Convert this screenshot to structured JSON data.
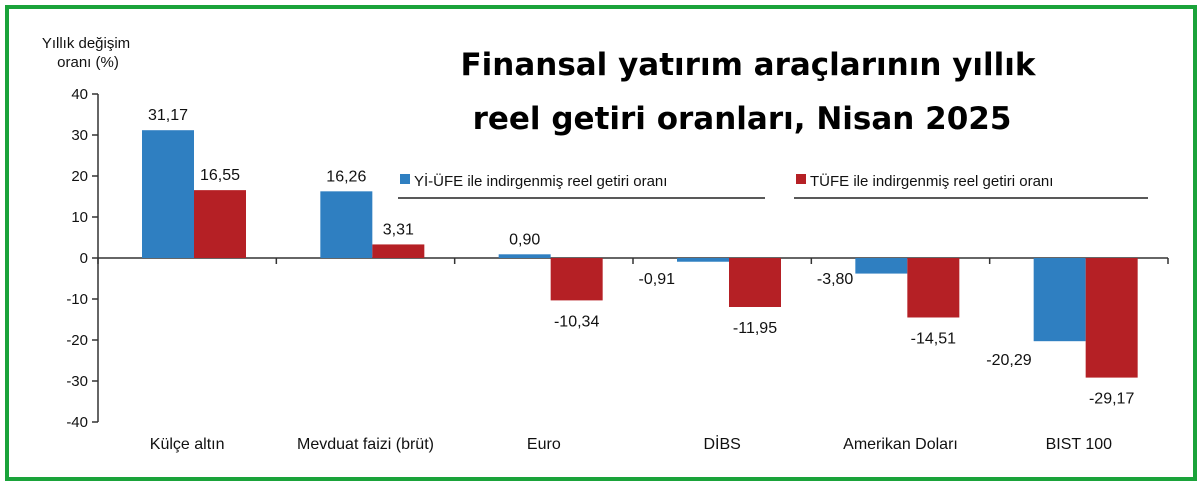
{
  "chart_data": {
    "type": "bar",
    "title_lines": [
      "Finansal yatırım araçlarının yıllık",
      "reel getiri oranları, Nisan 2025"
    ],
    "ylabel_lines": [
      "Yıllık değişim",
      "oranı (%)"
    ],
    "categories": [
      "Külçe altın",
      "Mevduat faizi (brüt)",
      "Euro",
      "DİBS",
      "Amerikan Doları",
      "BIST 100"
    ],
    "series": [
      {
        "name": "Yİ-ÜFE ile indirgenmiş reel getiri oranı",
        "color": "#2f7fc1",
        "values": [
          31.17,
          16.26,
          0.9,
          -0.91,
          -3.8,
          -20.29
        ],
        "labels": [
          "31,17",
          "16,26",
          "0,90",
          "-0,91",
          "-3,80",
          "-20,29"
        ]
      },
      {
        "name": "TÜFE ile indirgenmiş reel getiri oranı",
        "color": "#b52025",
        "values": [
          16.55,
          3.31,
          -10.34,
          -11.95,
          -14.51,
          -29.17
        ],
        "labels": [
          "16,55",
          "3,31",
          "-10,34",
          "-11,95",
          "-14,51",
          "-29,17"
        ]
      }
    ],
    "ylim": [
      -40,
      40
    ],
    "yticks": [
      40,
      30,
      20,
      10,
      0,
      -10,
      -20,
      -30,
      -40
    ],
    "ytick_labels": [
      "40",
      "30",
      "20",
      "10",
      "0",
      "-10",
      "-20",
      "-30",
      "-40"
    ],
    "grid": false,
    "legend_position": "top-right"
  }
}
